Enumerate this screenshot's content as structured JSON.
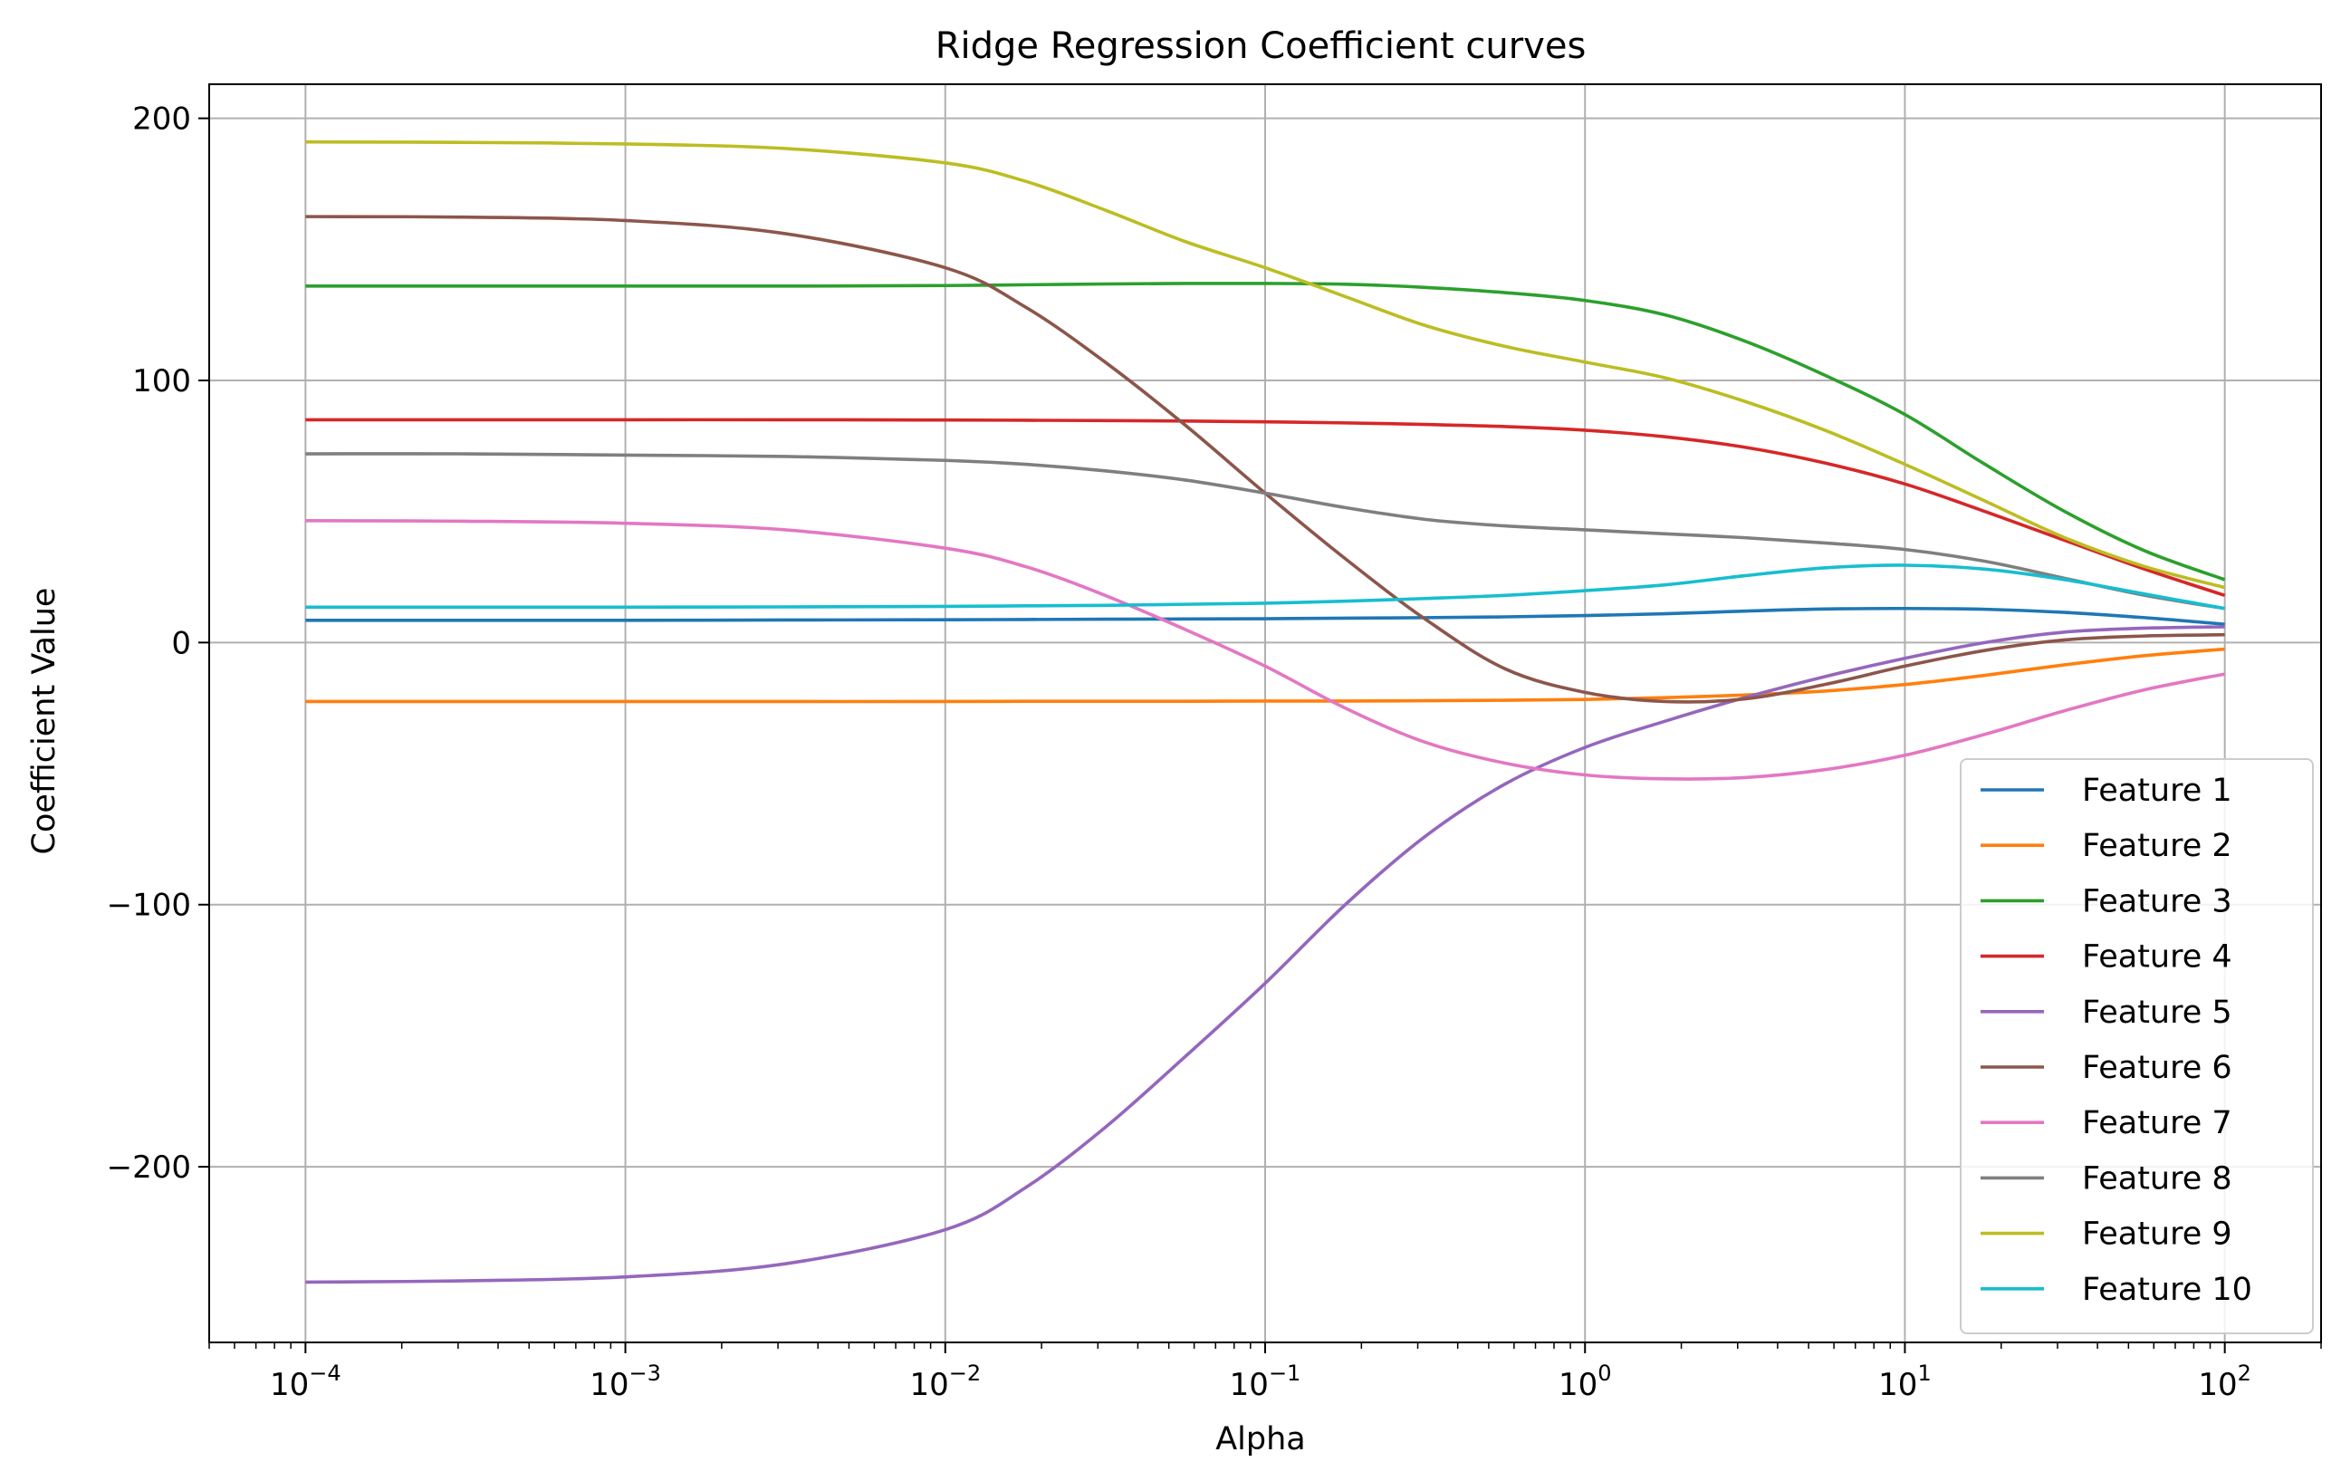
{
  "chart_data": {
    "type": "line",
    "title": "Ridge Regression Coefficient curves",
    "xlabel": "Alpha",
    "ylabel": "Coefficient Value",
    "xscale": "log",
    "xlim": [
      5e-05,
      200
    ],
    "ylim": [
      -267,
      213
    ],
    "grid": true,
    "legend_position": "lower-right",
    "x_ticks": [
      {
        "value": 0.0001,
        "base": "10",
        "exp": "−4"
      },
      {
        "value": 0.001,
        "base": "10",
        "exp": "−3"
      },
      {
        "value": 0.01,
        "base": "10",
        "exp": "−2"
      },
      {
        "value": 0.1,
        "base": "10",
        "exp": "−1"
      },
      {
        "value": 1,
        "base": "10",
        "exp": "0"
      },
      {
        "value": 10,
        "base": "10",
        "exp": "1"
      },
      {
        "value": 100,
        "base": "10",
        "exp": "2"
      }
    ],
    "y_ticks": [
      {
        "value": 200,
        "label": "200"
      },
      {
        "value": 100,
        "label": "100"
      },
      {
        "value": 0,
        "label": "0"
      },
      {
        "value": -100,
        "label": "−100"
      },
      {
        "value": -200,
        "label": "−200"
      }
    ],
    "x": [
      0.0001,
      0.000316,
      0.001,
      0.00316,
      0.01,
      0.0178,
      0.0316,
      0.0562,
      0.1,
      0.178,
      0.316,
      0.562,
      1,
      1.78,
      3.16,
      5.62,
      10,
      17.8,
      31.6,
      56.2,
      100
    ],
    "series": [
      {
        "name": "Feature 1",
        "color": "#1f77b4",
        "values": [
          8.5,
          8.5,
          8.5,
          8.6,
          8.7,
          8.8,
          8.9,
          9.0,
          9.1,
          9.3,
          9.5,
          9.8,
          10.3,
          11.0,
          12.0,
          12.8,
          13.0,
          12.7,
          11.5,
          9.5,
          7.0
        ]
      },
      {
        "name": "Feature 2",
        "color": "#ff7f0e",
        "values": [
          -22.5,
          -22.5,
          -22.5,
          -22.5,
          -22.5,
          -22.4,
          -22.4,
          -22.4,
          -22.3,
          -22.3,
          -22.2,
          -22.0,
          -21.7,
          -21.0,
          -20.0,
          -18.5,
          -16.0,
          -12.5,
          -8.5,
          -5.0,
          -2.5
        ]
      },
      {
        "name": "Feature 3",
        "color": "#2ca02c",
        "values": [
          136.0,
          136.0,
          136.0,
          136.0,
          136.2,
          136.5,
          136.8,
          137.0,
          137.0,
          136.7,
          135.5,
          133.5,
          130.5,
          125.0,
          115.0,
          102.0,
          87.0,
          68.0,
          50.0,
          35.0,
          24.0
        ]
      },
      {
        "name": "Feature 4",
        "color": "#d62728",
        "values": [
          85.0,
          85.0,
          85.0,
          85.0,
          84.9,
          84.8,
          84.7,
          84.5,
          84.2,
          83.8,
          83.2,
          82.4,
          81.0,
          78.5,
          74.5,
          68.5,
          60.5,
          50.0,
          39.0,
          28.0,
          18.0
        ]
      },
      {
        "name": "Feature 5",
        "color": "#9467bd",
        "values": [
          -244.0,
          -243.5,
          -242.0,
          -237.0,
          -224.0,
          -208.0,
          -185.0,
          -158.0,
          -130.0,
          -100.0,
          -74.0,
          -54.0,
          -40.0,
          -30.0,
          -21.0,
          -13.0,
          -6.0,
          0.0,
          4.0,
          5.5,
          6.0
        ]
      },
      {
        "name": "Feature 6",
        "color": "#8c564b",
        "values": [
          162.5,
          162.3,
          161.0,
          156.0,
          143.0,
          128.0,
          107.0,
          83.0,
          57.0,
          32.0,
          9.0,
          -10.0,
          -19.0,
          -22.5,
          -21.5,
          -16.0,
          -9.0,
          -3.0,
          1.0,
          2.5,
          3.0
        ]
      },
      {
        "name": "Feature 7",
        "color": "#e377c2",
        "values": [
          46.5,
          46.3,
          45.5,
          43.0,
          36.0,
          29.0,
          18.0,
          5.0,
          -9.0,
          -25.0,
          -38.0,
          -46.0,
          -50.5,
          -52.0,
          -51.5,
          -48.5,
          -43.0,
          -35.0,
          -26.0,
          -18.0,
          -12.0
        ]
      },
      {
        "name": "Feature 8",
        "color": "#7f7f7f",
        "values": [
          72.0,
          72.0,
          71.5,
          71.0,
          69.5,
          68.0,
          65.5,
          62.0,
          57.0,
          51.5,
          47.0,
          44.5,
          43.0,
          41.5,
          40.0,
          38.0,
          35.5,
          31.0,
          24.5,
          18.0,
          13.0
        ]
      },
      {
        "name": "Feature 9",
        "color": "#bcbd22",
        "values": [
          191.0,
          190.8,
          190.2,
          188.5,
          183.0,
          176.0,
          165.0,
          153.0,
          143.0,
          132.0,
          121.0,
          113.0,
          107.0,
          101.0,
          92.0,
          81.0,
          68.0,
          54.0,
          40.0,
          29.0,
          21.0
        ]
      },
      {
        "name": "Feature 10",
        "color": "#17becf",
        "values": [
          13.5,
          13.5,
          13.5,
          13.6,
          13.8,
          14.0,
          14.2,
          14.6,
          15.0,
          15.8,
          16.8,
          18.0,
          19.8,
          22.0,
          25.5,
          28.5,
          29.5,
          28.0,
          24.0,
          18.5,
          13.0
        ]
      }
    ]
  }
}
